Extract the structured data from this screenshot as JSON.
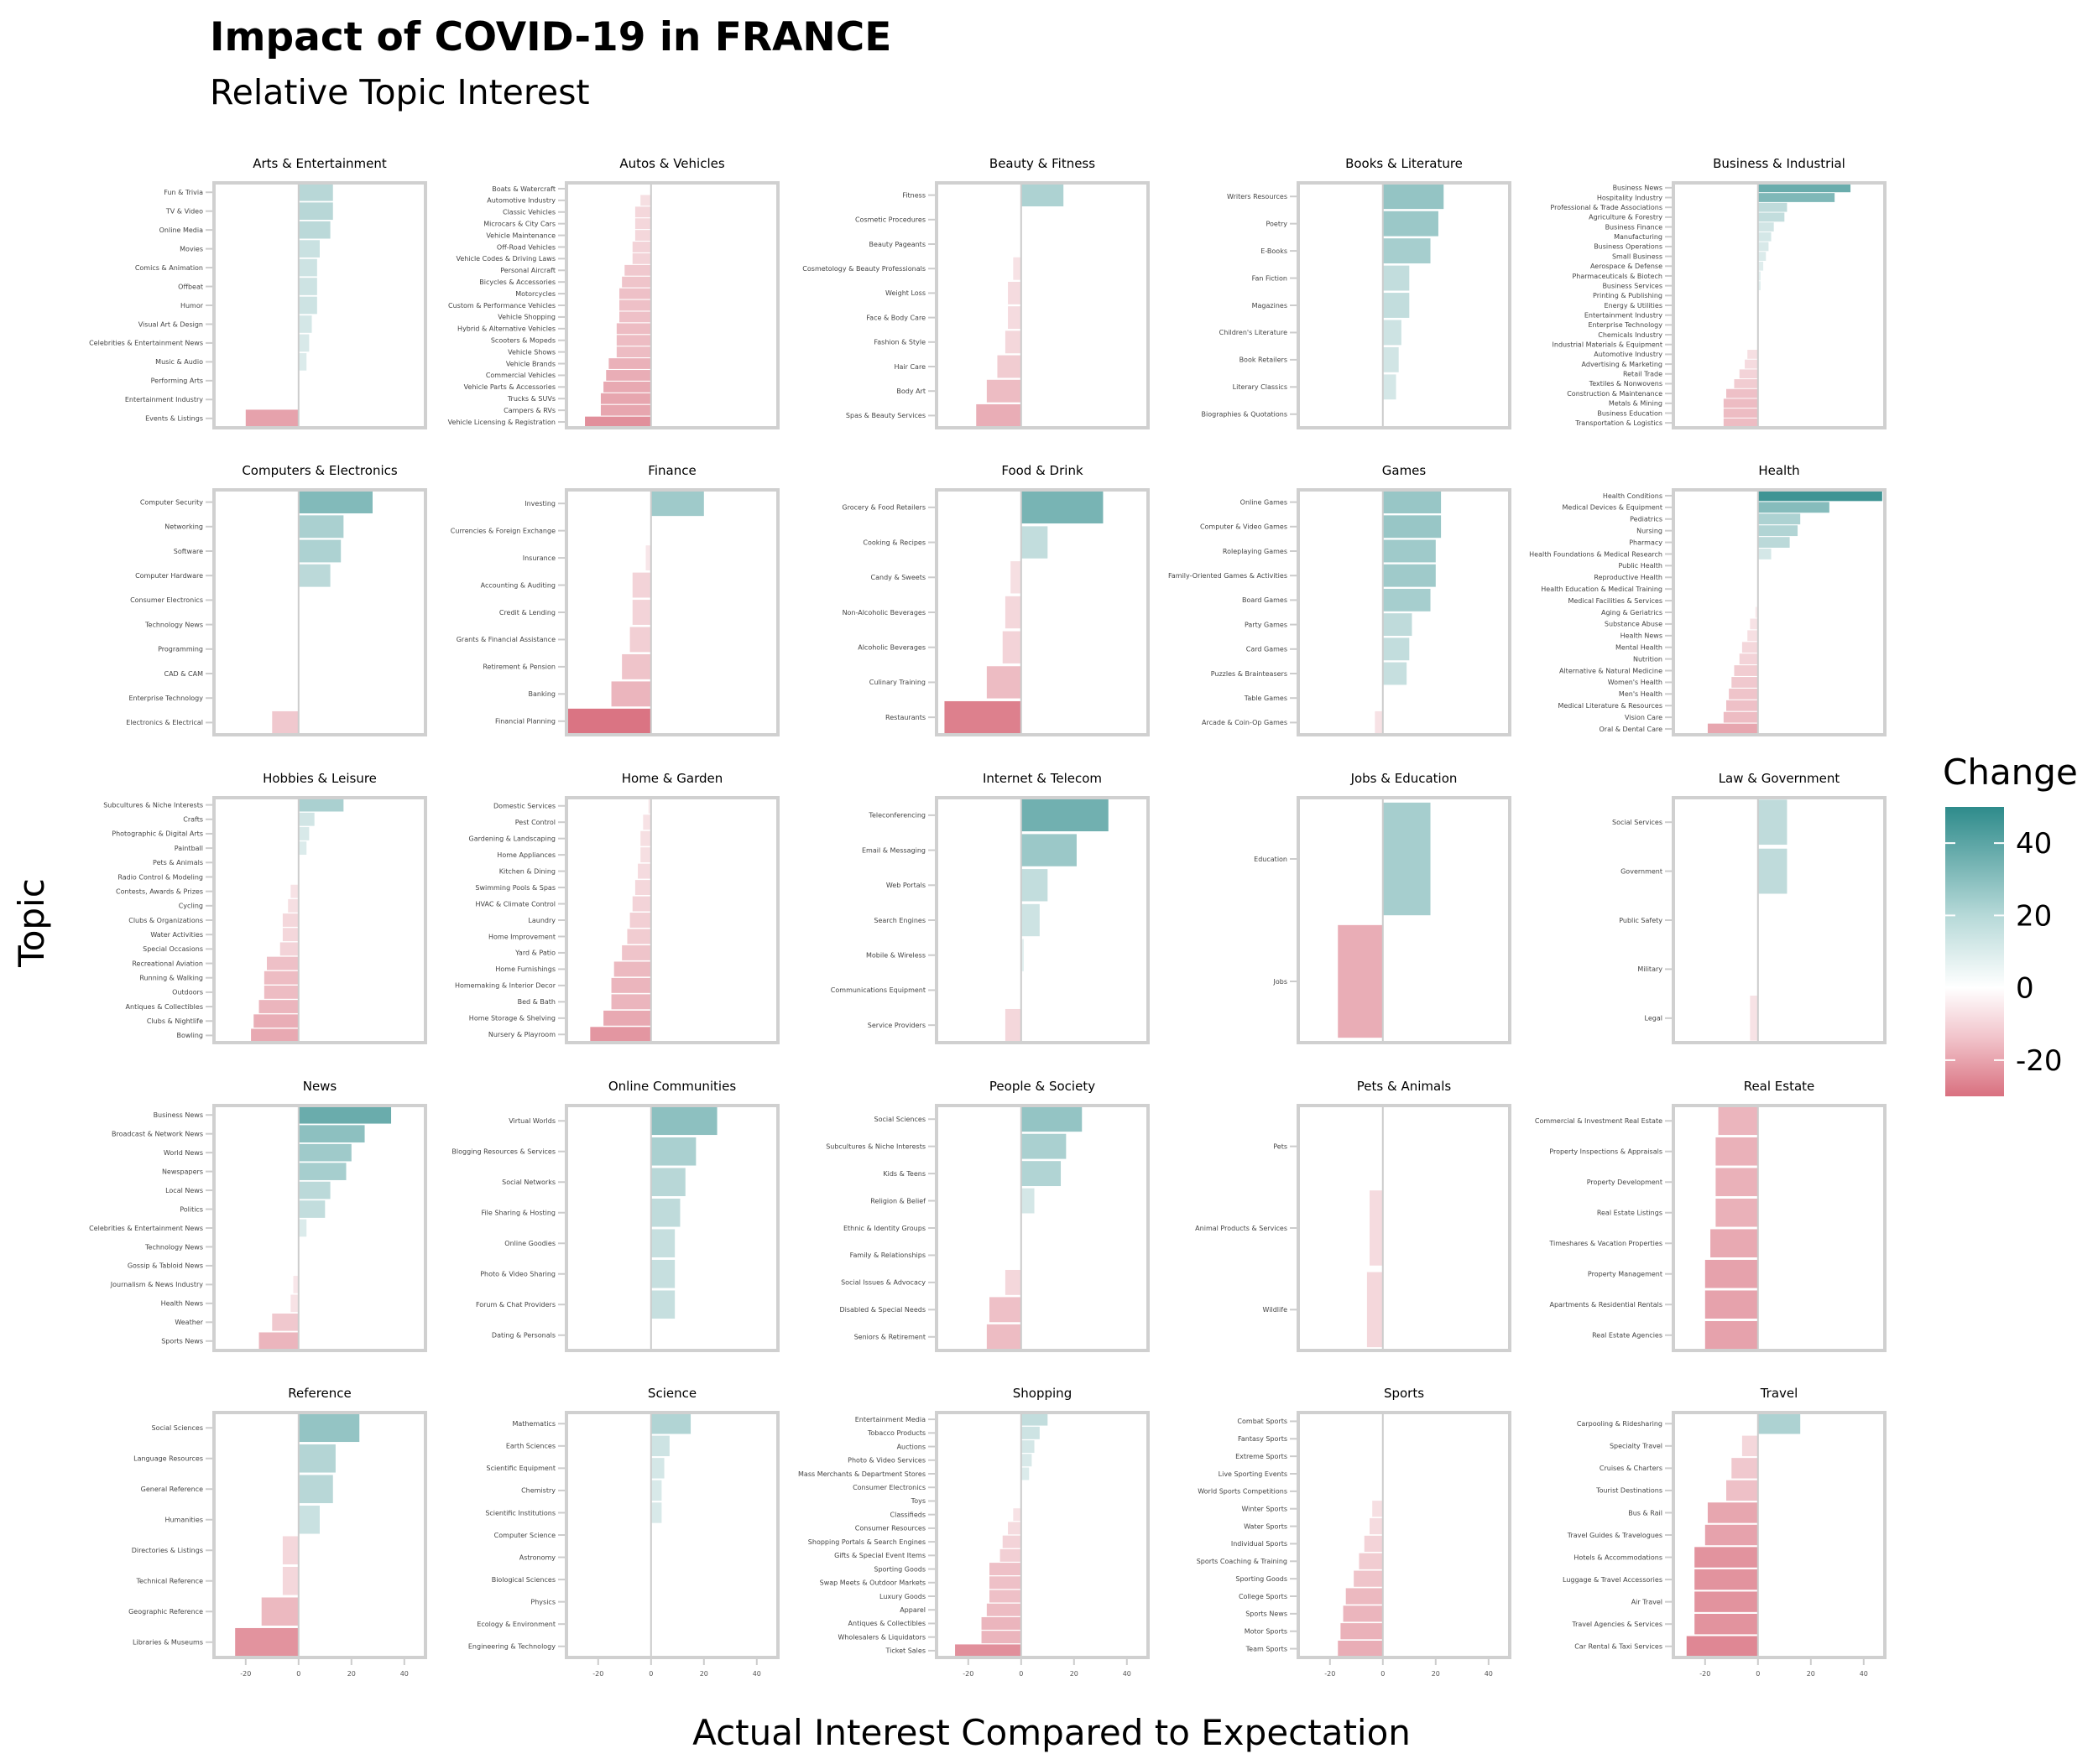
{
  "chart_data": {
    "type": "bar",
    "orientation": "horizontal",
    "title": "Impact of COVID-19 in FRANCE",
    "subtitle": "Relative Topic Interest",
    "xlabel": "Actual Interest Compared to Expectation",
    "ylabel": "Topic",
    "xlim": [
      -32,
      48
    ],
    "x_ticks": [
      -20,
      0,
      20,
      40
    ],
    "legend": {
      "title": "Change",
      "labels": [
        40,
        20,
        0,
        -20
      ],
      "range": [
        -30,
        50
      ],
      "colors": {
        "high": "#2e8b8b",
        "mid": "#ffffff",
        "low": "#d9707f"
      },
      "placement": "right"
    },
    "grid": false,
    "panels": [
      {
        "title": "Arts & Entertainment",
        "categories": [
          "Fun & Trivia",
          "TV & Video",
          "Online Media",
          "Movies",
          "Comics & Animation",
          "Offbeat",
          "Humor",
          "Visual Art & Design",
          "Celebrities & Entertainment News",
          "Music & Audio",
          "Performing Arts",
          "Entertainment Industry",
          "Events & Listings"
        ],
        "values": [
          13,
          13,
          12,
          8,
          7,
          7,
          7,
          5,
          4,
          3,
          0,
          0,
          -20
        ]
      },
      {
        "title": "Autos & Vehicles",
        "categories": [
          "Boats & Watercraft",
          "Automotive Industry",
          "Classic Vehicles",
          "Microcars & City Cars",
          "Vehicle Maintenance",
          "Off-Road Vehicles",
          "Vehicle Codes & Driving Laws",
          "Personal Aircraft",
          "Bicycles & Accessories",
          "Motorcycles",
          "Custom & Performance Vehicles",
          "Vehicle Shopping",
          "Hybrid & Alternative Vehicles",
          "Scooters & Mopeds",
          "Vehicle Shows",
          "Vehicle Brands",
          "Commercial Vehicles",
          "Vehicle Parts & Accessories",
          "Trucks & SUVs",
          "Campers & RVs",
          "Vehicle Licensing & Registration"
        ],
        "values": [
          0,
          -4,
          -6,
          -6,
          -6,
          -7,
          -7,
          -10,
          -11,
          -12,
          -12,
          -12,
          -13,
          -13,
          -13,
          -16,
          -17,
          -18,
          -19,
          -19,
          -25
        ]
      },
      {
        "title": "Beauty & Fitness",
        "categories": [
          "Fitness",
          "Cosmetic Procedures",
          "Beauty Pageants",
          "Cosmetology & Beauty Professionals",
          "Weight Loss",
          "Face & Body Care",
          "Fashion & Style",
          "Hair Care",
          "Body Art",
          "Spas & Beauty Services"
        ],
        "values": [
          16,
          0,
          0,
          -3,
          -5,
          -5,
          -6,
          -9,
          -13,
          -17
        ]
      },
      {
        "title": "Books & Literature",
        "categories": [
          "Writers Resources",
          "Poetry",
          "E-Books",
          "Fan Fiction",
          "Magazines",
          "Children's Literature",
          "Book Retailers",
          "Literary Classics",
          "Biographies & Quotations"
        ],
        "values": [
          23,
          21,
          18,
          10,
          10,
          7,
          6,
          5,
          0
        ]
      },
      {
        "title": "Business & Industrial",
        "categories": [
          "Business News",
          "Hospitality Industry",
          "Professional & Trade Associations",
          "Agriculture & Forestry",
          "Business Finance",
          "Manufacturing",
          "Business Operations",
          "Small Business",
          "Aerospace & Defense",
          "Pharmaceuticals & Biotech",
          "Business Services",
          "Printing & Publishing",
          "Energy & Utilities",
          "Entertainment Industry",
          "Enterprise Technology",
          "Chemicals Industry",
          "Industrial Materials & Equipment",
          "Automotive Industry",
          "Advertising & Marketing",
          "Retail Trade",
          "Textiles & Nonwovens",
          "Construction & Maintenance",
          "Metals & Mining",
          "Business Education",
          "Transportation & Logistics"
        ],
        "values": [
          35,
          29,
          11,
          10,
          6,
          5,
          4,
          3,
          2,
          1,
          1,
          0,
          0,
          0,
          0,
          0,
          0,
          -4,
          -5,
          -7,
          -9,
          -12,
          -13,
          -13,
          -13
        ]
      },
      {
        "title": "Computers & Electronics",
        "categories": [
          "Computer Security",
          "Networking",
          "Software",
          "Computer Hardware",
          "Consumer Electronics",
          "Technology News",
          "Programming",
          "CAD & CAM",
          "Enterprise Technology",
          "Electronics & Electrical"
        ],
        "values": [
          28,
          17,
          16,
          12,
          0,
          0,
          0,
          0,
          0,
          -10
        ]
      },
      {
        "title": "Finance",
        "categories": [
          "Investing",
          "Currencies & Foreign Exchange",
          "Insurance",
          "Accounting & Auditing",
          "Credit & Lending",
          "Grants & Financial Assistance",
          "Retirement & Pension",
          "Banking",
          "Financial Planning"
        ],
        "values": [
          20,
          0,
          -2,
          -7,
          -7,
          -8,
          -11,
          -15,
          -32
        ]
      },
      {
        "title": "Food & Drink",
        "categories": [
          "Grocery & Food Retailers",
          "Cooking & Recipes",
          "Candy & Sweets",
          "Non-Alcoholic Beverages",
          "Alcoholic Beverages",
          "Culinary Training",
          "Restaurants"
        ],
        "values": [
          31,
          10,
          -4,
          -6,
          -7,
          -13,
          -29
        ]
      },
      {
        "title": "Games",
        "categories": [
          "Online Games",
          "Computer & Video Games",
          "Roleplaying Games",
          "Family-Oriented Games & Activities",
          "Board Games",
          "Party Games",
          "Card Games",
          "Puzzles & Brainteasers",
          "Table Games",
          "Arcade & Coin-Op Games"
        ],
        "values": [
          22,
          22,
          20,
          20,
          18,
          11,
          10,
          9,
          0,
          -3
        ]
      },
      {
        "title": "Health",
        "categories": [
          "Health Conditions",
          "Medical Devices & Equipment",
          "Pediatrics",
          "Nursing",
          "Pharmacy",
          "Health Foundations & Medical Research",
          "Public Health",
          "Reproductive Health",
          "Health Education & Medical Training",
          "Medical Facilities & Services",
          "Aging & Geriatrics",
          "Substance Abuse",
          "Health News",
          "Mental Health",
          "Nutrition",
          "Alternative & Natural Medicine",
          "Women's Health",
          "Men's Health",
          "Medical Literature & Resources",
          "Vision Care",
          "Oral & Dental Care"
        ],
        "values": [
          47,
          27,
          16,
          15,
          12,
          5,
          0,
          0,
          0,
          0,
          -1,
          -3,
          -4,
          -6,
          -7,
          -9,
          -10,
          -11,
          -12,
          -13,
          -19
        ]
      },
      {
        "title": "Hobbies & Leisure",
        "categories": [
          "Subcultures & Niche Interests",
          "Crafts",
          "Photographic & Digital Arts",
          "Paintball",
          "Pets & Animals",
          "Radio Control & Modeling",
          "Contests, Awards & Prizes",
          "Cycling",
          "Clubs & Organizations",
          "Water Activities",
          "Special Occasions",
          "Recreational Aviation",
          "Running & Walking",
          "Outdoors",
          "Antiques & Collectibles",
          "Clubs & Nightlife",
          "Bowling"
        ],
        "values": [
          17,
          6,
          4,
          3,
          0,
          0,
          -3,
          -4,
          -6,
          -6,
          -7,
          -12,
          -13,
          -13,
          -15,
          -17,
          -18
        ]
      },
      {
        "title": "Home & Garden",
        "categories": [
          "Domestic Services",
          "Pest Control",
          "Gardening & Landscaping",
          "Home Appliances",
          "Kitchen & Dining",
          "Swimming Pools & Spas",
          "HVAC & Climate Control",
          "Laundry",
          "Home Improvement",
          "Yard & Patio",
          "Home Furnishings",
          "Homemaking & Interior Decor",
          "Bed & Bath",
          "Home Storage & Shelving",
          "Nursery & Playroom"
        ],
        "values": [
          -1,
          -3,
          -4,
          -4,
          -5,
          -6,
          -7,
          -8,
          -9,
          -11,
          -14,
          -15,
          -15,
          -18,
          -23
        ]
      },
      {
        "title": "Internet & Telecom",
        "categories": [
          "Teleconferencing",
          "Email & Messaging",
          "Web Portals",
          "Search Engines",
          "Mobile & Wireless",
          "Communications Equipment",
          "Service Providers"
        ],
        "values": [
          33,
          21,
          10,
          7,
          1,
          0,
          -6
        ]
      },
      {
        "title": "Jobs & Education",
        "categories": [
          "Education",
          "Jobs"
        ],
        "values": [
          18,
          -17
        ]
      },
      {
        "title": "Law & Government",
        "categories": [
          "Social Services",
          "Government",
          "Public Safety",
          "Military",
          "Legal"
        ],
        "values": [
          11,
          11,
          0,
          0,
          -3
        ]
      },
      {
        "title": "News",
        "categories": [
          "Business News",
          "Broadcast & Network News",
          "World News",
          "Newspapers",
          "Local News",
          "Politics",
          "Celebrities & Entertainment News",
          "Technology News",
          "Gossip & Tabloid News",
          "Journalism & News Industry",
          "Health News",
          "Weather",
          "Sports News"
        ],
        "values": [
          35,
          25,
          20,
          18,
          12,
          10,
          3,
          0,
          0,
          -2,
          -3,
          -10,
          -15
        ]
      },
      {
        "title": "Online Communities",
        "categories": [
          "Virtual Worlds",
          "Blogging Resources & Services",
          "Social Networks",
          "File Sharing & Hosting",
          "Online Goodies",
          "Photo & Video Sharing",
          "Forum & Chat Providers",
          "Dating & Personals"
        ],
        "values": [
          25,
          17,
          13,
          11,
          9,
          9,
          9,
          0
        ]
      },
      {
        "title": "People & Society",
        "categories": [
          "Social Sciences",
          "Subcultures & Niche Interests",
          "Kids & Teens",
          "Religion & Belief",
          "Ethnic & Identity Groups",
          "Family & Relationships",
          "Social Issues & Advocacy",
          "Disabled & Special Needs",
          "Seniors & Retirement"
        ],
        "values": [
          23,
          17,
          15,
          5,
          0,
          0,
          -6,
          -12,
          -13
        ]
      },
      {
        "title": "Pets & Animals",
        "categories": [
          "Pets",
          "Animal Products & Services",
          "Wildlife"
        ],
        "values": [
          0,
          -5,
          -6
        ]
      },
      {
        "title": "Real Estate",
        "categories": [
          "Commercial & Investment Real Estate",
          "Property Inspections & Appraisals",
          "Property Development",
          "Real Estate Listings",
          "Timeshares & Vacation Properties",
          "Property Management",
          "Apartments & Residential Rentals",
          "Real Estate Agencies"
        ],
        "values": [
          -15,
          -16,
          -16,
          -16,
          -18,
          -20,
          -20,
          -20
        ]
      },
      {
        "title": "Reference",
        "categories": [
          "Social Sciences",
          "Language Resources",
          "General Reference",
          "Humanities",
          "Directories & Listings",
          "Technical Reference",
          "Geographic Reference",
          "Libraries & Museums"
        ],
        "values": [
          23,
          14,
          13,
          8,
          -6,
          -6,
          -14,
          -24
        ]
      },
      {
        "title": "Science",
        "categories": [
          "Mathematics",
          "Earth Sciences",
          "Scientific Equipment",
          "Chemistry",
          "Scientific Institutions",
          "Computer Science",
          "Astronomy",
          "Biological Sciences",
          "Physics",
          "Ecology & Environment",
          "Engineering & Technology"
        ],
        "values": [
          15,
          7,
          5,
          4,
          4,
          0,
          0,
          0,
          0,
          0,
          0
        ]
      },
      {
        "title": "Shopping",
        "categories": [
          "Entertainment Media",
          "Tobacco Products",
          "Auctions",
          "Photo & Video Services",
          "Mass Merchants & Department Stores",
          "Consumer Electronics",
          "Toys",
          "Classifieds",
          "Consumer Resources",
          "Shopping Portals & Search Engines",
          "Gifts & Special Event Items",
          "Sporting Goods",
          "Swap Meets & Outdoor Markets",
          "Luxury Goods",
          "Apparel",
          "Antiques & Collectibles",
          "Wholesalers & Liquidators",
          "Ticket Sales"
        ],
        "values": [
          10,
          7,
          5,
          4,
          3,
          0,
          0,
          -3,
          -5,
          -7,
          -8,
          -12,
          -12,
          -12,
          -13,
          -15,
          -15,
          -25
        ]
      },
      {
        "title": "Sports",
        "categories": [
          "Combat Sports",
          "Fantasy Sports",
          "Extreme Sports",
          "Live Sporting Events",
          "World Sports Competitions",
          "Winter Sports",
          "Water Sports",
          "Individual Sports",
          "Sports Coaching & Training",
          "Sporting Goods",
          "College Sports",
          "Sports News",
          "Motor Sports",
          "Team Sports"
        ],
        "values": [
          0,
          0,
          0,
          0,
          0,
          -4,
          -5,
          -7,
          -9,
          -11,
          -14,
          -15,
          -16,
          -17
        ]
      },
      {
        "title": "Travel",
        "categories": [
          "Carpooling & Ridesharing",
          "Specialty Travel",
          "Cruises & Charters",
          "Tourist Destinations",
          "Bus & Rail",
          "Travel Guides & Travelogues",
          "Hotels & Accommodations",
          "Luggage & Travel Accessories",
          "Air Travel",
          "Travel Agencies & Services",
          "Car Rental & Taxi Services"
        ],
        "values": [
          16,
          -6,
          -10,
          -12,
          -19,
          -20,
          -24,
          -24,
          -24,
          -24,
          -27
        ]
      }
    ]
  }
}
